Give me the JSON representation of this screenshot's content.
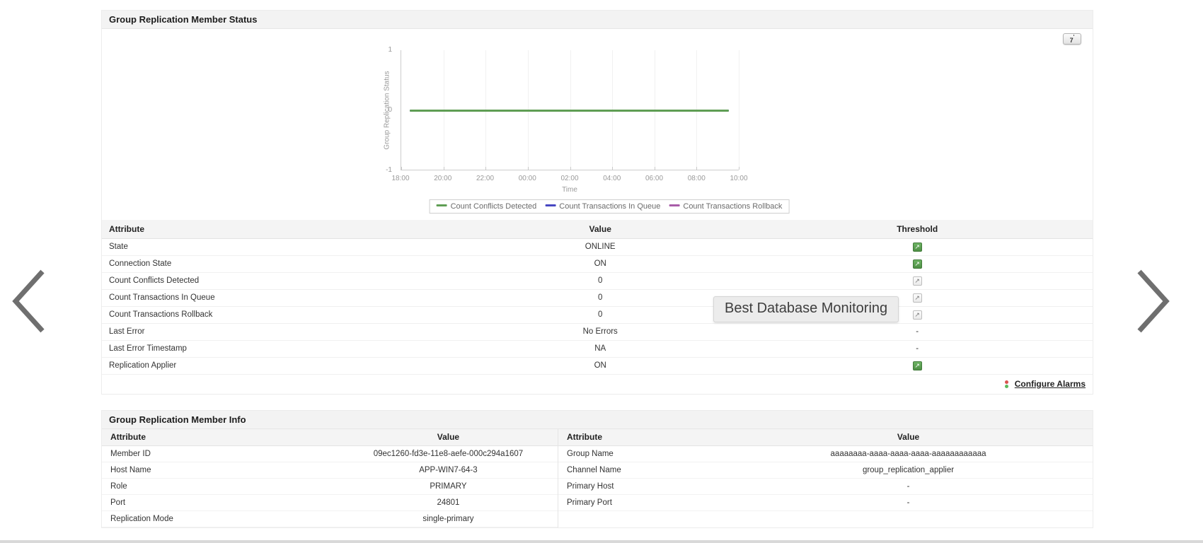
{
  "icons": {
    "threshold_arrow": "↗",
    "range_caret": "'"
  },
  "tooltip": {
    "text": "Best Database Monitoring"
  },
  "panel_status": {
    "title": "Group Replication Member Status",
    "range_button": {
      "label": "7"
    },
    "chart_data": {
      "type": "line",
      "title": "",
      "xlabel": "Time",
      "ylabel": "Group Replication Status",
      "ylim": [
        -1,
        1
      ],
      "yticks": [
        1,
        0,
        -1
      ],
      "x": [
        "18:00",
        "20:00",
        "22:00",
        "00:00",
        "02:00",
        "04:00",
        "06:00",
        "08:00",
        "10:00"
      ],
      "series": [
        {
          "name": "Count Conflicts Detected",
          "color": "#5f9e54",
          "values": [
            0,
            0,
            0,
            0,
            0,
            0,
            0,
            0,
            0
          ]
        },
        {
          "name": "Count Transactions In Queue",
          "color": "#4747c2",
          "values": [
            0,
            0,
            0,
            0,
            0,
            0,
            0,
            0,
            0
          ]
        },
        {
          "name": "Count Transactions Rollback",
          "color": "#a85ca8",
          "values": [
            0,
            0,
            0,
            0,
            0,
            0,
            0,
            0,
            0
          ]
        }
      ],
      "legend_position": "bottom",
      "grid": true
    },
    "table": {
      "headers": [
        "Attribute",
        "Value",
        "Threshold"
      ],
      "rows": [
        {
          "attribute": "State",
          "value": "ONLINE",
          "threshold": "green"
        },
        {
          "attribute": "Connection State",
          "value": "ON",
          "threshold": "green"
        },
        {
          "attribute": "Count Conflicts Detected",
          "value": "0",
          "threshold": "grey"
        },
        {
          "attribute": "Count Transactions In Queue",
          "value": "0",
          "threshold": "grey"
        },
        {
          "attribute": "Count Transactions Rollback",
          "value": "0",
          "threshold": "grey"
        },
        {
          "attribute": "Last Error",
          "value": "No Errors",
          "threshold": "-"
        },
        {
          "attribute": "Last Error Timestamp",
          "value": "NA",
          "threshold": "-"
        },
        {
          "attribute": "Replication Applier",
          "value": "ON",
          "threshold": "green"
        }
      ]
    },
    "configure_alarms_label": "Configure Alarms"
  },
  "panel_info": {
    "title": "Group Replication Member Info",
    "left_table": {
      "headers": [
        "Attribute",
        "Value"
      ],
      "rows": [
        {
          "attribute": "Member ID",
          "value": "09ec1260-fd3e-11e8-aefe-000c294a1607"
        },
        {
          "attribute": "Host Name",
          "value": "APP-WIN7-64-3"
        },
        {
          "attribute": "Role",
          "value": "PRIMARY"
        },
        {
          "attribute": "Port",
          "value": "24801"
        },
        {
          "attribute": "Replication Mode",
          "value": "single-primary"
        }
      ]
    },
    "right_table": {
      "headers": [
        "Attribute",
        "Value"
      ],
      "rows": [
        {
          "attribute": "Group Name",
          "value": "aaaaaaaa-aaaa-aaaa-aaaa-aaaaaaaaaaaa"
        },
        {
          "attribute": "Channel Name",
          "value": "group_replication_applier"
        },
        {
          "attribute": "Primary Host",
          "value": "-"
        },
        {
          "attribute": "Primary Port",
          "value": "-"
        }
      ]
    }
  }
}
